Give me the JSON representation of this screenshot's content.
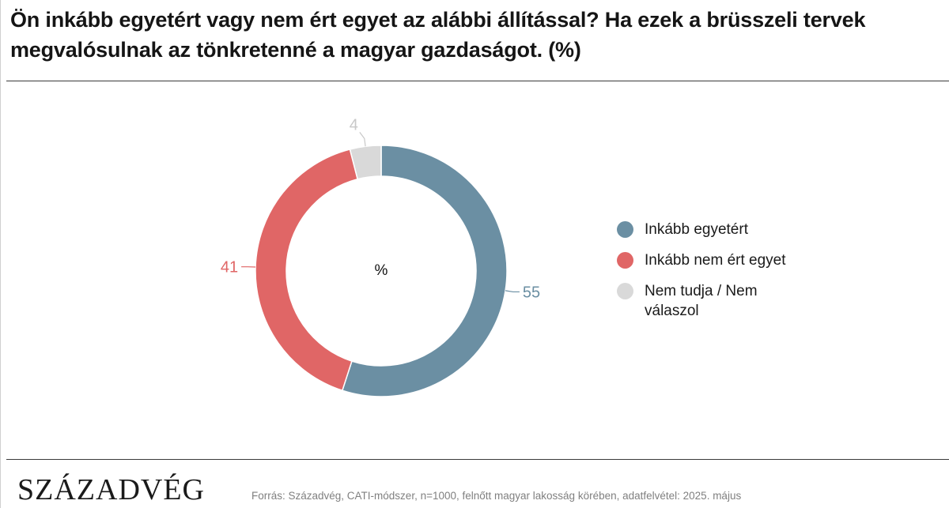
{
  "title": "Ön inkább egyetért vagy nem ért egyet az alábbi állítással? Ha ezek a brüsszeli tervek megvalósulnak az tönkretenné a magyar gazdaságot. (%)",
  "chart_data": {
    "type": "pie",
    "variant": "donut",
    "center_label": "%",
    "slices": [
      {
        "label": "Inkább egyetért",
        "value": 55,
        "color": "#6b8fa3"
      },
      {
        "label": "Inkább nem ért egyet",
        "value": 41,
        "color": "#e06666"
      },
      {
        "label": "Nem tudja / Nem válaszol",
        "value": 4,
        "color": "#d9d9d9"
      }
    ],
    "legend_position": "right"
  },
  "legend": [
    {
      "label": "Inkább egyetért",
      "color": "#6b8fa3"
    },
    {
      "label": "Inkább nem ért egyet",
      "color": "#e06666"
    },
    {
      "label": "Nem tudja / Nem válaszol",
      "color": "#d9d9d9"
    }
  ],
  "footer": {
    "logo": "SZÁZADVÉG",
    "source": "Forrás: Századvég, CATI-módszer, n=1000, felnőtt magyar lakosság körében, adatfelvétel: 2025. május"
  }
}
